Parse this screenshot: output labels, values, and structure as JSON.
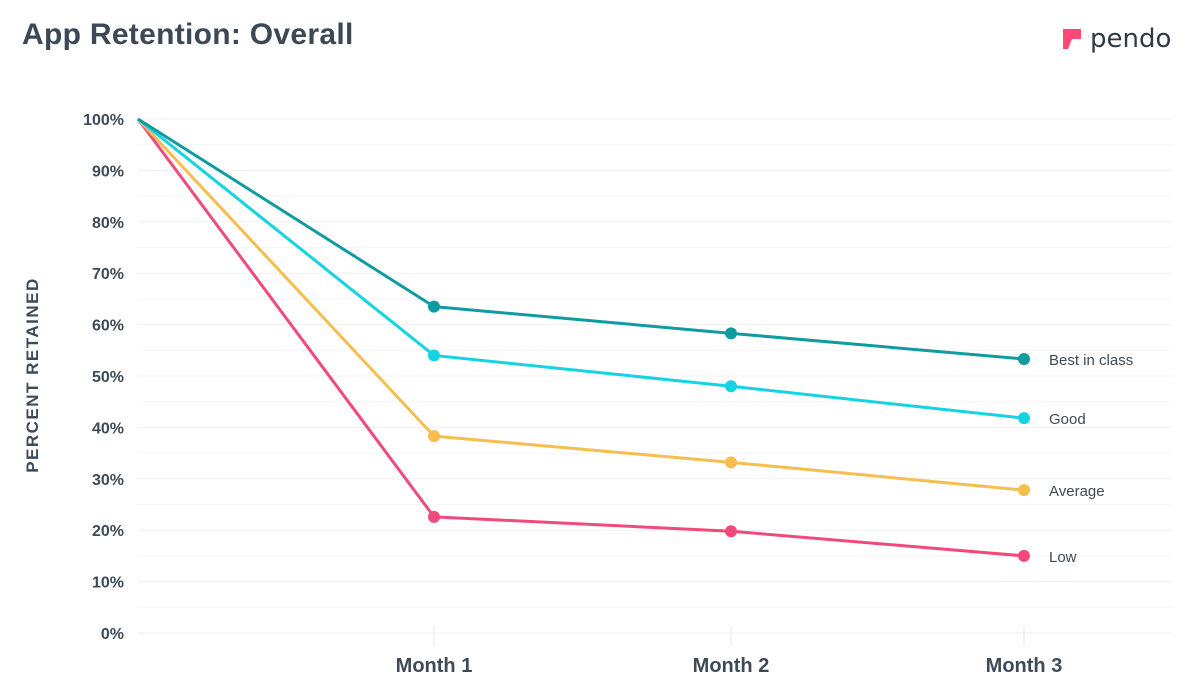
{
  "header": {
    "title": "App Retention: Overall",
    "brand_name": "pendo",
    "brand_color": "#ff4876"
  },
  "chart_data": {
    "type": "line",
    "title": "App Retention: Overall",
    "xlabel": "",
    "ylabel": "PERCENT RETAINED",
    "x": [
      "",
      "Month 1",
      "Month 2",
      "Month 3"
    ],
    "x_ticks": [
      "Month 1",
      "Month 2",
      "Month 3"
    ],
    "y_ticks": [
      "0%",
      "10%",
      "20%",
      "30%",
      "40%",
      "50%",
      "60%",
      "70%",
      "80%",
      "90%",
      "100%"
    ],
    "ylim": [
      0,
      100
    ],
    "grid": true,
    "series": [
      {
        "name": "Best in class",
        "color": "#0f9ba0",
        "values": [
          100,
          63.5,
          58.3,
          53.3
        ]
      },
      {
        "name": "Good",
        "color": "#14d3e3",
        "values": [
          100,
          54.0,
          48.0,
          41.8
        ]
      },
      {
        "name": "Average",
        "color": "#f6bd4f",
        "values": [
          100,
          38.3,
          33.2,
          27.8
        ]
      },
      {
        "name": "Low",
        "color": "#ef4a7b",
        "values": [
          100,
          22.6,
          19.8,
          15.0
        ]
      }
    ]
  }
}
